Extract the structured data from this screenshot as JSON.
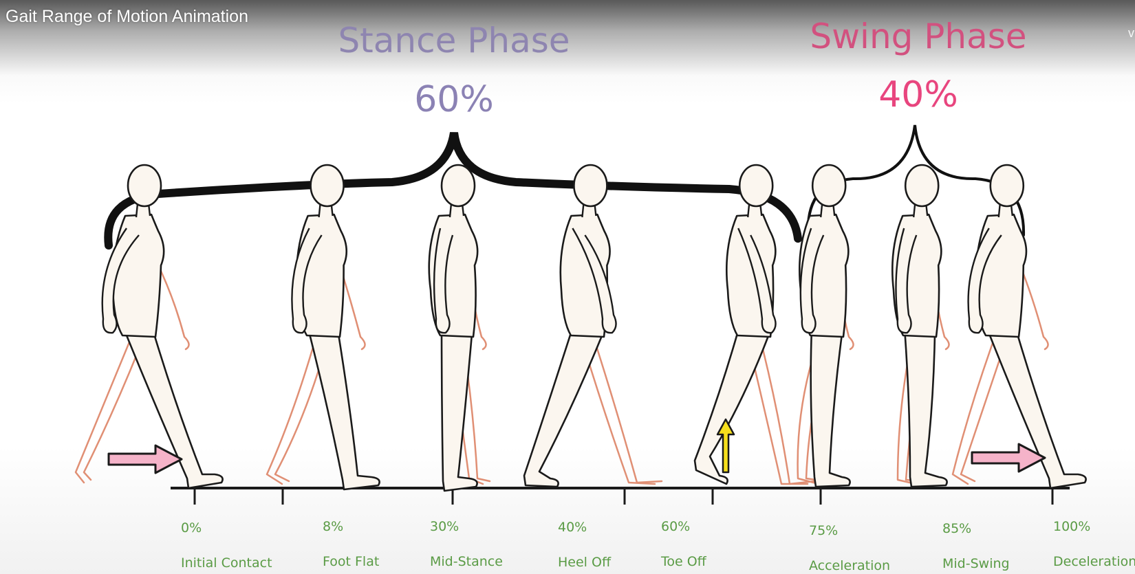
{
  "video": {
    "title": "Gait Range of Motion Animation",
    "corner_glyph": "v"
  },
  "stance": {
    "title": "Stance Phase",
    "percent": "60%",
    "title_color": "#8e85b0",
    "percent_color": "#8b82b4"
  },
  "swing": {
    "title": "Swing Phase",
    "percent": "40%",
    "title_color": "#d2517f",
    "percent_color": "#e8457e"
  },
  "events": [
    {
      "percent": "0%",
      "name": "Initial Contact"
    },
    {
      "percent": "8%",
      "name": "Foot Flat"
    },
    {
      "percent": "30%",
      "name": "Mid-Stance"
    },
    {
      "percent": "40%",
      "name": "Heel Off"
    },
    {
      "percent": "60%",
      "name": "Toe Off"
    },
    {
      "percent": "75%",
      "name": "Acceleration"
    },
    {
      "percent": "85%",
      "name": "Mid-Swing"
    },
    {
      "percent": "100%",
      "name": "Deceleration"
    }
  ],
  "figures": [
    {
      "pose": "initial-contact"
    },
    {
      "pose": "foot-flat"
    },
    {
      "pose": "mid-stance"
    },
    {
      "pose": "heel-off"
    },
    {
      "pose": "toe-off"
    },
    {
      "pose": "acceleration"
    },
    {
      "pose": "mid-swing"
    },
    {
      "pose": "deceleration"
    }
  ],
  "colors": {
    "label_green": "#5a9b45",
    "body_fill": "#fbf6ef",
    "outline": "#1a1a1a",
    "back_limb": "#e08f74",
    "pink_arrow": "#f5b3c9",
    "yellow_arrow": "#f6df1c"
  },
  "annotations": {
    "forward_arrow_icon": "right-arrow-icon",
    "lift_arrow_icon": "up-arrow-icon"
  }
}
